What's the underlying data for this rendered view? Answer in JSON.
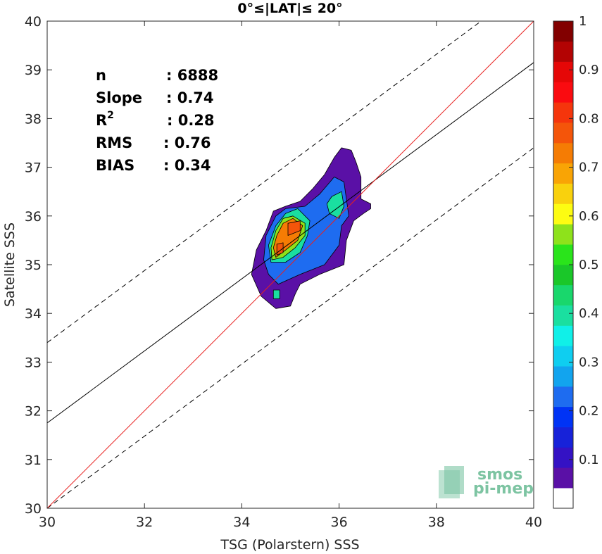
{
  "chart_data": {
    "type": "contour",
    "title": "0°≤|LAT|≤ 20°",
    "xlabel": "TSG (Polarstern) SSS",
    "ylabel": "Satellite SSS",
    "xlim": [
      30,
      40
    ],
    "ylim": [
      30,
      40
    ],
    "xticks": [
      "30",
      "32",
      "34",
      "36",
      "38",
      "40"
    ],
    "yticks": [
      "30",
      "31",
      "32",
      "33",
      "34",
      "35",
      "36",
      "37",
      "38",
      "39",
      "40"
    ],
    "grid": false,
    "stats": [
      {
        "label": "n",
        "value": ": 6888"
      },
      {
        "label": "Slope",
        "value": ": 0.74"
      },
      {
        "label": "R",
        "sup": "2",
        "value": ": 0.28"
      },
      {
        "label": "RMS",
        "value": ": 0.76"
      },
      {
        "label": "BIAS",
        "value": ": 0.34"
      }
    ],
    "lines": {
      "identity": {
        "slope": 1,
        "intercept": 0,
        "color": "#e8201f"
      },
      "fit": {
        "slope": 0.74,
        "intercept": 9.55,
        "color": "#000000"
      },
      "upper_bound": {
        "slope": 0.74,
        "intercept": 11.2,
        "style": "dashed"
      },
      "lower_bound": {
        "slope": 0.74,
        "intercept": 7.8,
        "style": "dashed"
      }
    },
    "contours": [
      {
        "level": 0.05,
        "points": [
          [
            34.7,
            34.1
          ],
          [
            35.0,
            34.15
          ],
          [
            35.1,
            34.4
          ],
          [
            35.2,
            34.6
          ],
          [
            35.6,
            34.8
          ],
          [
            36.1,
            35.0
          ],
          [
            36.15,
            35.5
          ],
          [
            36.3,
            35.9
          ],
          [
            36.5,
            36.05
          ],
          [
            36.65,
            36.15
          ],
          [
            36.65,
            36.25
          ],
          [
            36.45,
            36.35
          ],
          [
            36.45,
            36.8
          ],
          [
            36.35,
            37.1
          ],
          [
            36.25,
            37.35
          ],
          [
            36.05,
            37.4
          ],
          [
            35.9,
            37.2
          ],
          [
            35.7,
            36.85
          ],
          [
            35.45,
            36.55
          ],
          [
            35.2,
            36.3
          ],
          [
            34.9,
            36.2
          ],
          [
            34.65,
            36.1
          ],
          [
            34.5,
            35.7
          ],
          [
            34.3,
            35.3
          ],
          [
            34.2,
            34.8
          ],
          [
            34.4,
            34.35
          ]
        ]
      },
      {
        "level": 0.25,
        "points": [
          [
            34.55,
            34.8
          ],
          [
            34.75,
            34.6
          ],
          [
            35.2,
            34.8
          ],
          [
            35.7,
            35.0
          ],
          [
            36.0,
            35.4
          ],
          [
            36.05,
            35.8
          ],
          [
            36.2,
            36.0
          ],
          [
            36.1,
            36.7
          ],
          [
            35.9,
            36.8
          ],
          [
            35.6,
            36.45
          ],
          [
            35.3,
            36.2
          ],
          [
            34.9,
            36.15
          ],
          [
            34.7,
            36.0
          ],
          [
            34.5,
            35.6
          ],
          [
            34.45,
            35.1
          ]
        ]
      },
      {
        "level": 0.4,
        "points": [
          [
            35.8,
            36.05
          ],
          [
            36.0,
            35.95
          ],
          [
            36.1,
            36.2
          ],
          [
            36.05,
            36.5
          ],
          [
            35.85,
            36.4
          ],
          [
            35.75,
            36.25
          ]
        ]
      },
      {
        "level": 0.4,
        "points": [
          [
            34.6,
            35.05
          ],
          [
            34.9,
            35.05
          ],
          [
            35.2,
            35.25
          ],
          [
            35.35,
            35.6
          ],
          [
            35.4,
            35.9
          ],
          [
            35.15,
            36.15
          ],
          [
            34.9,
            36.05
          ],
          [
            34.7,
            35.8
          ],
          [
            34.55,
            35.4
          ]
        ]
      },
      {
        "level": 0.6,
        "points": [
          [
            34.62,
            35.1
          ],
          [
            34.85,
            35.15
          ],
          [
            35.1,
            35.35
          ],
          [
            35.3,
            35.6
          ],
          [
            35.3,
            35.85
          ],
          [
            35.05,
            36.0
          ],
          [
            34.85,
            35.95
          ],
          [
            34.7,
            35.7
          ],
          [
            34.6,
            35.35
          ]
        ]
      },
      {
        "level": 0.75,
        "points": [
          [
            34.7,
            35.15
          ],
          [
            34.9,
            35.3
          ],
          [
            35.15,
            35.5
          ],
          [
            35.25,
            35.8
          ],
          [
            35.05,
            35.95
          ],
          [
            34.85,
            35.85
          ],
          [
            34.72,
            35.6
          ],
          [
            34.65,
            35.35
          ]
        ]
      },
      {
        "level": 0.8,
        "points": [
          [
            34.72,
            35.2
          ],
          [
            34.85,
            35.25
          ],
          [
            34.85,
            35.45
          ],
          [
            34.72,
            35.42
          ]
        ]
      },
      {
        "level": 0.8,
        "points": [
          [
            34.95,
            35.6
          ],
          [
            35.2,
            35.7
          ],
          [
            35.2,
            35.9
          ],
          [
            34.95,
            35.85
          ]
        ]
      },
      {
        "level": 0.4,
        "points": [
          [
            34.65,
            34.3
          ],
          [
            34.78,
            34.3
          ],
          [
            34.78,
            34.48
          ],
          [
            34.65,
            34.48
          ]
        ]
      }
    ],
    "colorbar": {
      "range": [
        0,
        1
      ],
      "ticks": [
        "0.1",
        "0.2",
        "0.3",
        "0.4",
        "0.5",
        "0.6",
        "0.7",
        "0.8",
        "0.9",
        "1"
      ],
      "colors": [
        "#ffffff",
        "#5a10a6",
        "#3412c4",
        "#1722d9",
        "#0033f5",
        "#1e6cf0",
        "#12a4ee",
        "#0fcef0",
        "#10f0e8",
        "#1adfa0",
        "#19d76c",
        "#1ac729",
        "#2ae41b",
        "#8ee21b",
        "#fdfc12",
        "#f9d10d",
        "#f9a405",
        "#f57c04",
        "#f4550a",
        "#f5350c",
        "#fa0b10",
        "#e50707",
        "#b30303",
        "#820000"
      ]
    }
  },
  "logo": {
    "line1": "smos",
    "line2": "pi-mep"
  }
}
